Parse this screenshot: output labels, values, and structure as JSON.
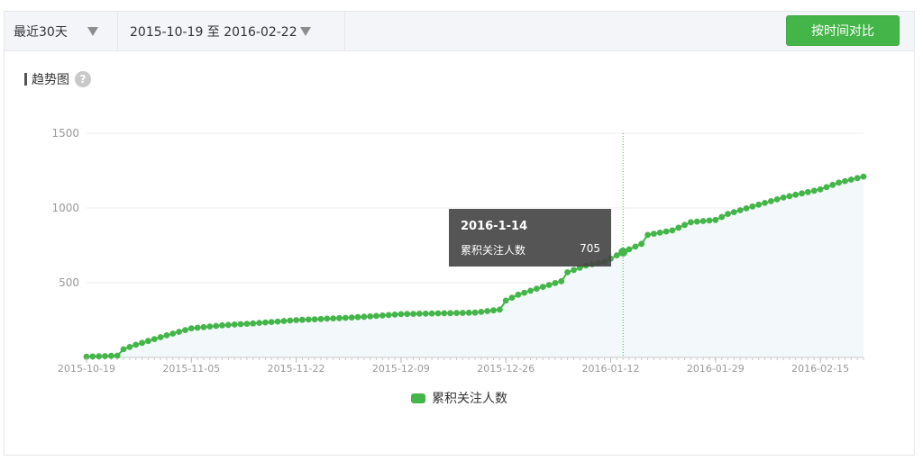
{
  "toolbar": {
    "range_label": "最近30天",
    "date_range_label": "2015-10-19 至 2016-02-22",
    "compare_button_label": "按时间对比"
  },
  "section": {
    "title": "趋势图",
    "help_icon": "question-icon"
  },
  "colors": {
    "series": "#44b549",
    "hover_line": "#44b549",
    "area_fill": "#f3f8fb",
    "grid": "#eeeeee"
  },
  "tooltip": {
    "date": "2016-1-14",
    "series_label": "累积关注人数",
    "value": "705"
  },
  "legend": {
    "label": "累积关注人数"
  },
  "chart_data": {
    "type": "area",
    "title": "",
    "xlabel": "",
    "ylabel": "",
    "x_start": "2015-10-19",
    "x_end": "2016-02-22",
    "x_tick_labels": [
      "2015-10-19",
      "2015-11-05",
      "2015-11-22",
      "2015-12-09",
      "2015-12-26",
      "2016-01-12",
      "2016-01-29",
      "2016-02-15"
    ],
    "y_tick_labels": [
      "500",
      "1000",
      "1500"
    ],
    "ylim": [
      0,
      1500
    ],
    "grid": true,
    "legend_position": "bottom-center",
    "hover_point": {
      "x": "2016-01-14",
      "y": 705
    },
    "series": [
      {
        "name": "累积关注人数",
        "points": [
          [
            "2015-10-19",
            5
          ],
          [
            "2015-10-24",
            12
          ],
          [
            "2015-10-25",
            55
          ],
          [
            "2015-10-27",
            85
          ],
          [
            "2015-10-29",
            110
          ],
          [
            "2015-11-01",
            148
          ],
          [
            "2015-11-05",
            195
          ],
          [
            "2015-11-10",
            215
          ],
          [
            "2015-11-15",
            228
          ],
          [
            "2015-11-22",
            250
          ],
          [
            "2015-11-30",
            265
          ],
          [
            "2015-12-04",
            275
          ],
          [
            "2015-12-09",
            290
          ],
          [
            "2015-12-15",
            295
          ],
          [
            "2015-12-21",
            300
          ],
          [
            "2015-12-25",
            320
          ],
          [
            "2015-12-26",
            380
          ],
          [
            "2015-12-28",
            420
          ],
          [
            "2015-12-31",
            460
          ],
          [
            "2016-01-04",
            510
          ],
          [
            "2016-01-05",
            570
          ],
          [
            "2016-01-08",
            615
          ],
          [
            "2016-01-11",
            640
          ],
          [
            "2016-01-14",
            705
          ],
          [
            "2016-01-17",
            760
          ],
          [
            "2016-01-18",
            820
          ],
          [
            "2016-01-22",
            850
          ],
          [
            "2016-01-25",
            905
          ],
          [
            "2016-01-29",
            920
          ],
          [
            "2016-01-31",
            960
          ],
          [
            "2016-02-04",
            1010
          ],
          [
            "2016-02-09",
            1070
          ],
          [
            "2016-02-15",
            1125
          ],
          [
            "2016-02-18",
            1170
          ],
          [
            "2016-02-22",
            1210
          ]
        ]
      }
    ]
  }
}
